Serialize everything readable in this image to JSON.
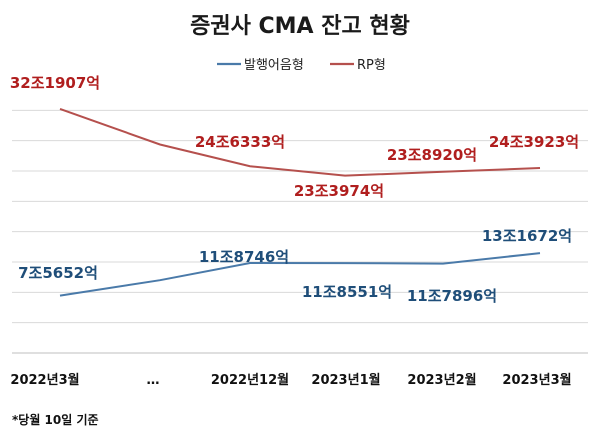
{
  "chart_data": {
    "type": "line",
    "title": "증권사 CMA 잔고 현황",
    "categories": [
      "2022년3월",
      "…",
      "2022년12월",
      "2023년1월",
      "2023년2월",
      "2023년3월"
    ],
    "ylim": [
      0,
      36
    ],
    "yunit": "조원",
    "series": [
      {
        "name": "발행어음형",
        "color": "#4a7aa9",
        "label_color": "#1f4e79",
        "values": [
          7.5652,
          9.6,
          11.8746,
          11.8551,
          11.7896,
          13.1672
        ],
        "labels": [
          "7조5652억",
          "",
          "11조8746억",
          "11조8551억",
          "11조7896억",
          "13조1672억"
        ]
      },
      {
        "name": "RP형",
        "color": "#b5504d",
        "label_color": "#b01e1e",
        "values": [
          32.1907,
          27.5,
          24.6333,
          23.3974,
          23.892,
          24.3923
        ],
        "labels": [
          "32조1907억",
          "",
          "24조6333억",
          "23조3974억",
          "23조8920억",
          "24조3923억"
        ]
      }
    ],
    "gridlines": true,
    "legend_position": "top-center"
  },
  "footnote": "*당월 10일 기준"
}
